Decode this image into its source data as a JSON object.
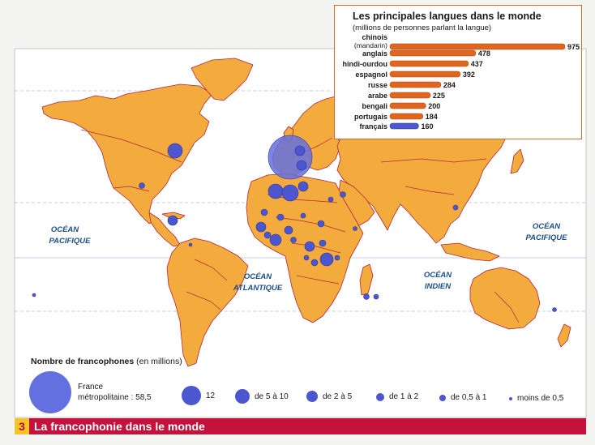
{
  "map": {
    "oceans": [
      {
        "name": "pacific-east",
        "lines": [
          "OCÉAN",
          "PACIFIQUE"
        ]
      },
      {
        "name": "atlantic",
        "lines": [
          "OCÉAN",
          "ATLANTIQUE"
        ]
      },
      {
        "name": "indian",
        "lines": [
          "OCÉAN",
          "INDIEN"
        ]
      },
      {
        "name": "pacific-west",
        "lines": [
          "OCÉAN",
          "PACIFIQUE"
        ]
      }
    ],
    "colors": {
      "land": "#f3ab3e",
      "water": "#ffffff",
      "borders": "#b0263c",
      "dots": "#4b56cf"
    }
  },
  "chart_data": {
    "type": "bar",
    "title": "Les principales langues dans le monde",
    "subtitle": "(millions de personnes parlant la langue)",
    "categories": [
      "chinois",
      "anglais",
      "hindi-ourdou",
      "espagnol",
      "russe",
      "arabe",
      "bengali",
      "portugais",
      "français"
    ],
    "category_notes": {
      "chinois": "(mandarin)"
    },
    "values": [
      975,
      478,
      437,
      392,
      284,
      225,
      200,
      184,
      160
    ],
    "highlight": "français",
    "colors": {
      "default": "#e0651e",
      "highlight": "#4b56cf"
    }
  },
  "legend": {
    "title_bold": "Nombre de francophones",
    "title_rest": " (en millions)",
    "items": [
      {
        "label_line1": "France",
        "label_line2": "métropolitaine : 58,5"
      },
      {
        "label": "12"
      },
      {
        "label": "de 5 à 10"
      },
      {
        "label": "de 2 à 5"
      },
      {
        "label": "de 1 à 2"
      },
      {
        "label": "de 0,5 à 1"
      },
      {
        "label": "moins de 0,5"
      }
    ]
  },
  "caption": {
    "number": "3",
    "text": "La francophonie dans le monde"
  }
}
